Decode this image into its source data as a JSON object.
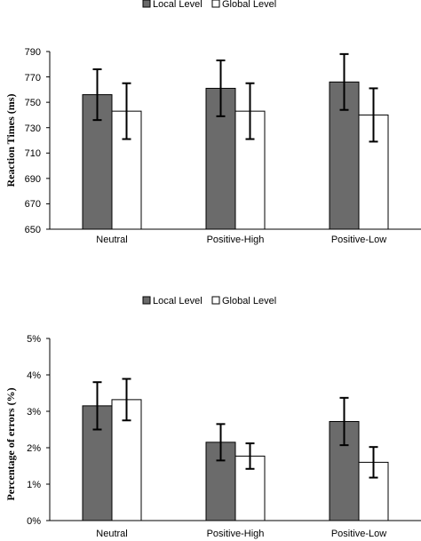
{
  "chart_data": [
    {
      "type": "bar",
      "categories": [
        "Neutral",
        "Positive-High",
        "Positive-Low"
      ],
      "series": [
        {
          "name": "Local Level",
          "values": [
            756,
            761,
            766
          ],
          "errors": [
            20,
            22,
            22
          ],
          "color": "#6b6b6b"
        },
        {
          "name": "Global Level",
          "values": [
            743,
            743,
            740
          ],
          "errors": [
            22,
            22,
            21
          ],
          "color": "#ffffff"
        }
      ],
      "yticks": [
        "790",
        "770",
        "750",
        "730",
        "710",
        "690",
        "670",
        "650"
      ],
      "ylim": [
        650,
        790
      ],
      "ylabel": "Reaction Times (ms)",
      "xlabel": "",
      "legend": "top-center",
      "grid": false
    },
    {
      "type": "bar",
      "categories": [
        "Neutral",
        "Positive-High",
        "Positive-Low"
      ],
      "series": [
        {
          "name": "Local Level",
          "values": [
            3.15,
            2.15,
            2.72
          ],
          "errors": [
            0.65,
            0.5,
            0.65
          ],
          "color": "#6b6b6b"
        },
        {
          "name": "Global Level",
          "values": [
            3.32,
            1.77,
            1.6
          ],
          "errors": [
            0.57,
            0.35,
            0.42
          ],
          "color": "#ffffff"
        }
      ],
      "yticks": [
        "5%",
        "4%",
        "3%",
        "2%",
        "1%",
        "0%"
      ],
      "ylim": [
        0,
        5
      ],
      "ylabel": "Percentage of errors (%)",
      "xlabel": "",
      "legend": "top-center",
      "grid": false
    }
  ]
}
